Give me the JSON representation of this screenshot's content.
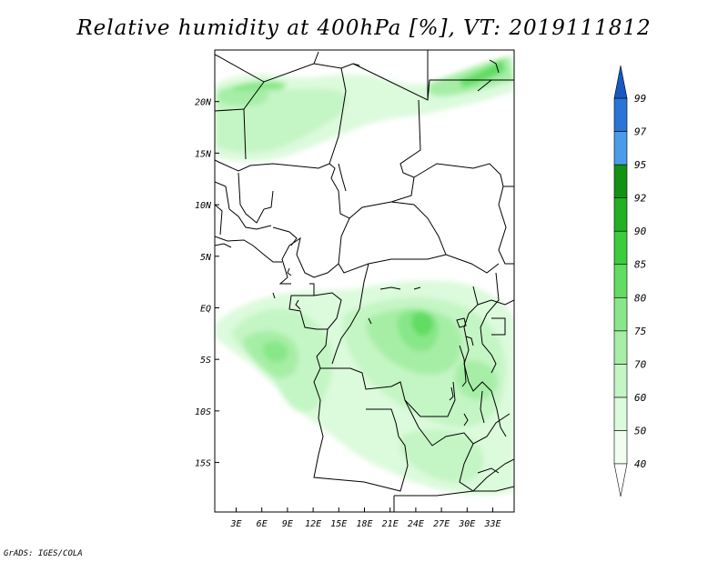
{
  "title": "Relative humidity at 400hPa [%], VT: 2019111812",
  "credit": "GrADS: IGES/COLA",
  "map": {
    "lat_labels": [
      {
        "label": "20N",
        "lat": 20
      },
      {
        "label": "15N",
        "lat": 15
      },
      {
        "label": "10N",
        "lat": 10
      },
      {
        "label": "5N",
        "lat": 5
      },
      {
        "label": "EQ",
        "lat": 0
      },
      {
        "label": "5S",
        "lat": -5
      },
      {
        "label": "10S",
        "lat": -10
      },
      {
        "label": "15S",
        "lat": -15
      }
    ],
    "lon_labels": [
      {
        "label": "3E",
        "lon": 3
      },
      {
        "label": "6E",
        "lon": 6
      },
      {
        "label": "9E",
        "lon": 9
      },
      {
        "label": "12E",
        "lon": 12
      },
      {
        "label": "15E",
        "lon": 15
      },
      {
        "label": "18E",
        "lon": 18
      },
      {
        "label": "21E",
        "lon": 21
      },
      {
        "label": "24E",
        "lon": 24
      },
      {
        "label": "27E",
        "lon": 27
      },
      {
        "label": "30E",
        "lon": 30
      },
      {
        "label": "33E",
        "lon": 33
      }
    ],
    "lon_range": [
      0.5,
      35.5
    ],
    "lat_range": [
      -19.8,
      25
    ]
  },
  "colorbar": {
    "levels": [
      {
        "label": "40",
        "color": "#f0fdf0"
      },
      {
        "label": "50",
        "color": "#dcfadc"
      },
      {
        "label": "60",
        "color": "#c4f5c4"
      },
      {
        "label": "70",
        "color": "#a6eea6"
      },
      {
        "label": "75",
        "color": "#88e788"
      },
      {
        "label": "80",
        "color": "#62dc62"
      },
      {
        "label": "85",
        "color": "#3ccc3c"
      },
      {
        "label": "90",
        "color": "#22b022"
      },
      {
        "label": "92",
        "color": "#129212"
      },
      {
        "label": "95",
        "color": "#4b9ce8"
      },
      {
        "label": "97",
        "color": "#2a74d8"
      },
      {
        "label": "99",
        "color": "#1858c0"
      }
    ],
    "top_arrow_color": "#1858c0",
    "bottom_arrow_color": "#ffffff"
  }
}
